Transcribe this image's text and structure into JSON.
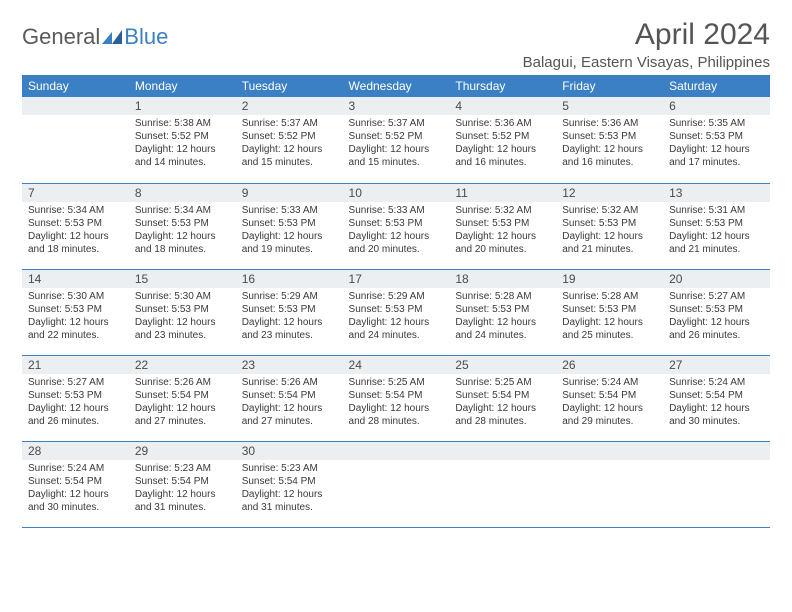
{
  "logo": {
    "general": "General",
    "blue": "Blue"
  },
  "title": "April 2024",
  "location": "Balagui, Eastern Visayas, Philippines",
  "colors": {
    "header_bg": "#3b7fc4",
    "header_text": "#ffffff",
    "daynum_bg": "#eceff1",
    "text": "#3a3a3a",
    "rule": "#3b7fc4",
    "title_color": "#555555",
    "logo_gray": "#5a5a5a",
    "logo_blue": "#3b7fc4"
  },
  "weekdays": [
    "Sunday",
    "Monday",
    "Tuesday",
    "Wednesday",
    "Thursday",
    "Friday",
    "Saturday"
  ],
  "weeks": [
    [
      null,
      {
        "d": "1",
        "sr": "5:38 AM",
        "ss": "5:52 PM",
        "dl": "12 hours and 14 minutes."
      },
      {
        "d": "2",
        "sr": "5:37 AM",
        "ss": "5:52 PM",
        "dl": "12 hours and 15 minutes."
      },
      {
        "d": "3",
        "sr": "5:37 AM",
        "ss": "5:52 PM",
        "dl": "12 hours and 15 minutes."
      },
      {
        "d": "4",
        "sr": "5:36 AM",
        "ss": "5:52 PM",
        "dl": "12 hours and 16 minutes."
      },
      {
        "d": "5",
        "sr": "5:36 AM",
        "ss": "5:53 PM",
        "dl": "12 hours and 16 minutes."
      },
      {
        "d": "6",
        "sr": "5:35 AM",
        "ss": "5:53 PM",
        "dl": "12 hours and 17 minutes."
      }
    ],
    [
      {
        "d": "7",
        "sr": "5:34 AM",
        "ss": "5:53 PM",
        "dl": "12 hours and 18 minutes."
      },
      {
        "d": "8",
        "sr": "5:34 AM",
        "ss": "5:53 PM",
        "dl": "12 hours and 18 minutes."
      },
      {
        "d": "9",
        "sr": "5:33 AM",
        "ss": "5:53 PM",
        "dl": "12 hours and 19 minutes."
      },
      {
        "d": "10",
        "sr": "5:33 AM",
        "ss": "5:53 PM",
        "dl": "12 hours and 20 minutes."
      },
      {
        "d": "11",
        "sr": "5:32 AM",
        "ss": "5:53 PM",
        "dl": "12 hours and 20 minutes."
      },
      {
        "d": "12",
        "sr": "5:32 AM",
        "ss": "5:53 PM",
        "dl": "12 hours and 21 minutes."
      },
      {
        "d": "13",
        "sr": "5:31 AM",
        "ss": "5:53 PM",
        "dl": "12 hours and 21 minutes."
      }
    ],
    [
      {
        "d": "14",
        "sr": "5:30 AM",
        "ss": "5:53 PM",
        "dl": "12 hours and 22 minutes."
      },
      {
        "d": "15",
        "sr": "5:30 AM",
        "ss": "5:53 PM",
        "dl": "12 hours and 23 minutes."
      },
      {
        "d": "16",
        "sr": "5:29 AM",
        "ss": "5:53 PM",
        "dl": "12 hours and 23 minutes."
      },
      {
        "d": "17",
        "sr": "5:29 AM",
        "ss": "5:53 PM",
        "dl": "12 hours and 24 minutes."
      },
      {
        "d": "18",
        "sr": "5:28 AM",
        "ss": "5:53 PM",
        "dl": "12 hours and 24 minutes."
      },
      {
        "d": "19",
        "sr": "5:28 AM",
        "ss": "5:53 PM",
        "dl": "12 hours and 25 minutes."
      },
      {
        "d": "20",
        "sr": "5:27 AM",
        "ss": "5:53 PM",
        "dl": "12 hours and 26 minutes."
      }
    ],
    [
      {
        "d": "21",
        "sr": "5:27 AM",
        "ss": "5:53 PM",
        "dl": "12 hours and 26 minutes."
      },
      {
        "d": "22",
        "sr": "5:26 AM",
        "ss": "5:54 PM",
        "dl": "12 hours and 27 minutes."
      },
      {
        "d": "23",
        "sr": "5:26 AM",
        "ss": "5:54 PM",
        "dl": "12 hours and 27 minutes."
      },
      {
        "d": "24",
        "sr": "5:25 AM",
        "ss": "5:54 PM",
        "dl": "12 hours and 28 minutes."
      },
      {
        "d": "25",
        "sr": "5:25 AM",
        "ss": "5:54 PM",
        "dl": "12 hours and 28 minutes."
      },
      {
        "d": "26",
        "sr": "5:24 AM",
        "ss": "5:54 PM",
        "dl": "12 hours and 29 minutes."
      },
      {
        "d": "27",
        "sr": "5:24 AM",
        "ss": "5:54 PM",
        "dl": "12 hours and 30 minutes."
      }
    ],
    [
      {
        "d": "28",
        "sr": "5:24 AM",
        "ss": "5:54 PM",
        "dl": "12 hours and 30 minutes."
      },
      {
        "d": "29",
        "sr": "5:23 AM",
        "ss": "5:54 PM",
        "dl": "12 hours and 31 minutes."
      },
      {
        "d": "30",
        "sr": "5:23 AM",
        "ss": "5:54 PM",
        "dl": "12 hours and 31 minutes."
      },
      null,
      null,
      null,
      null
    ]
  ],
  "labels": {
    "sunrise": "Sunrise:",
    "sunset": "Sunset:",
    "daylight": "Daylight:"
  }
}
